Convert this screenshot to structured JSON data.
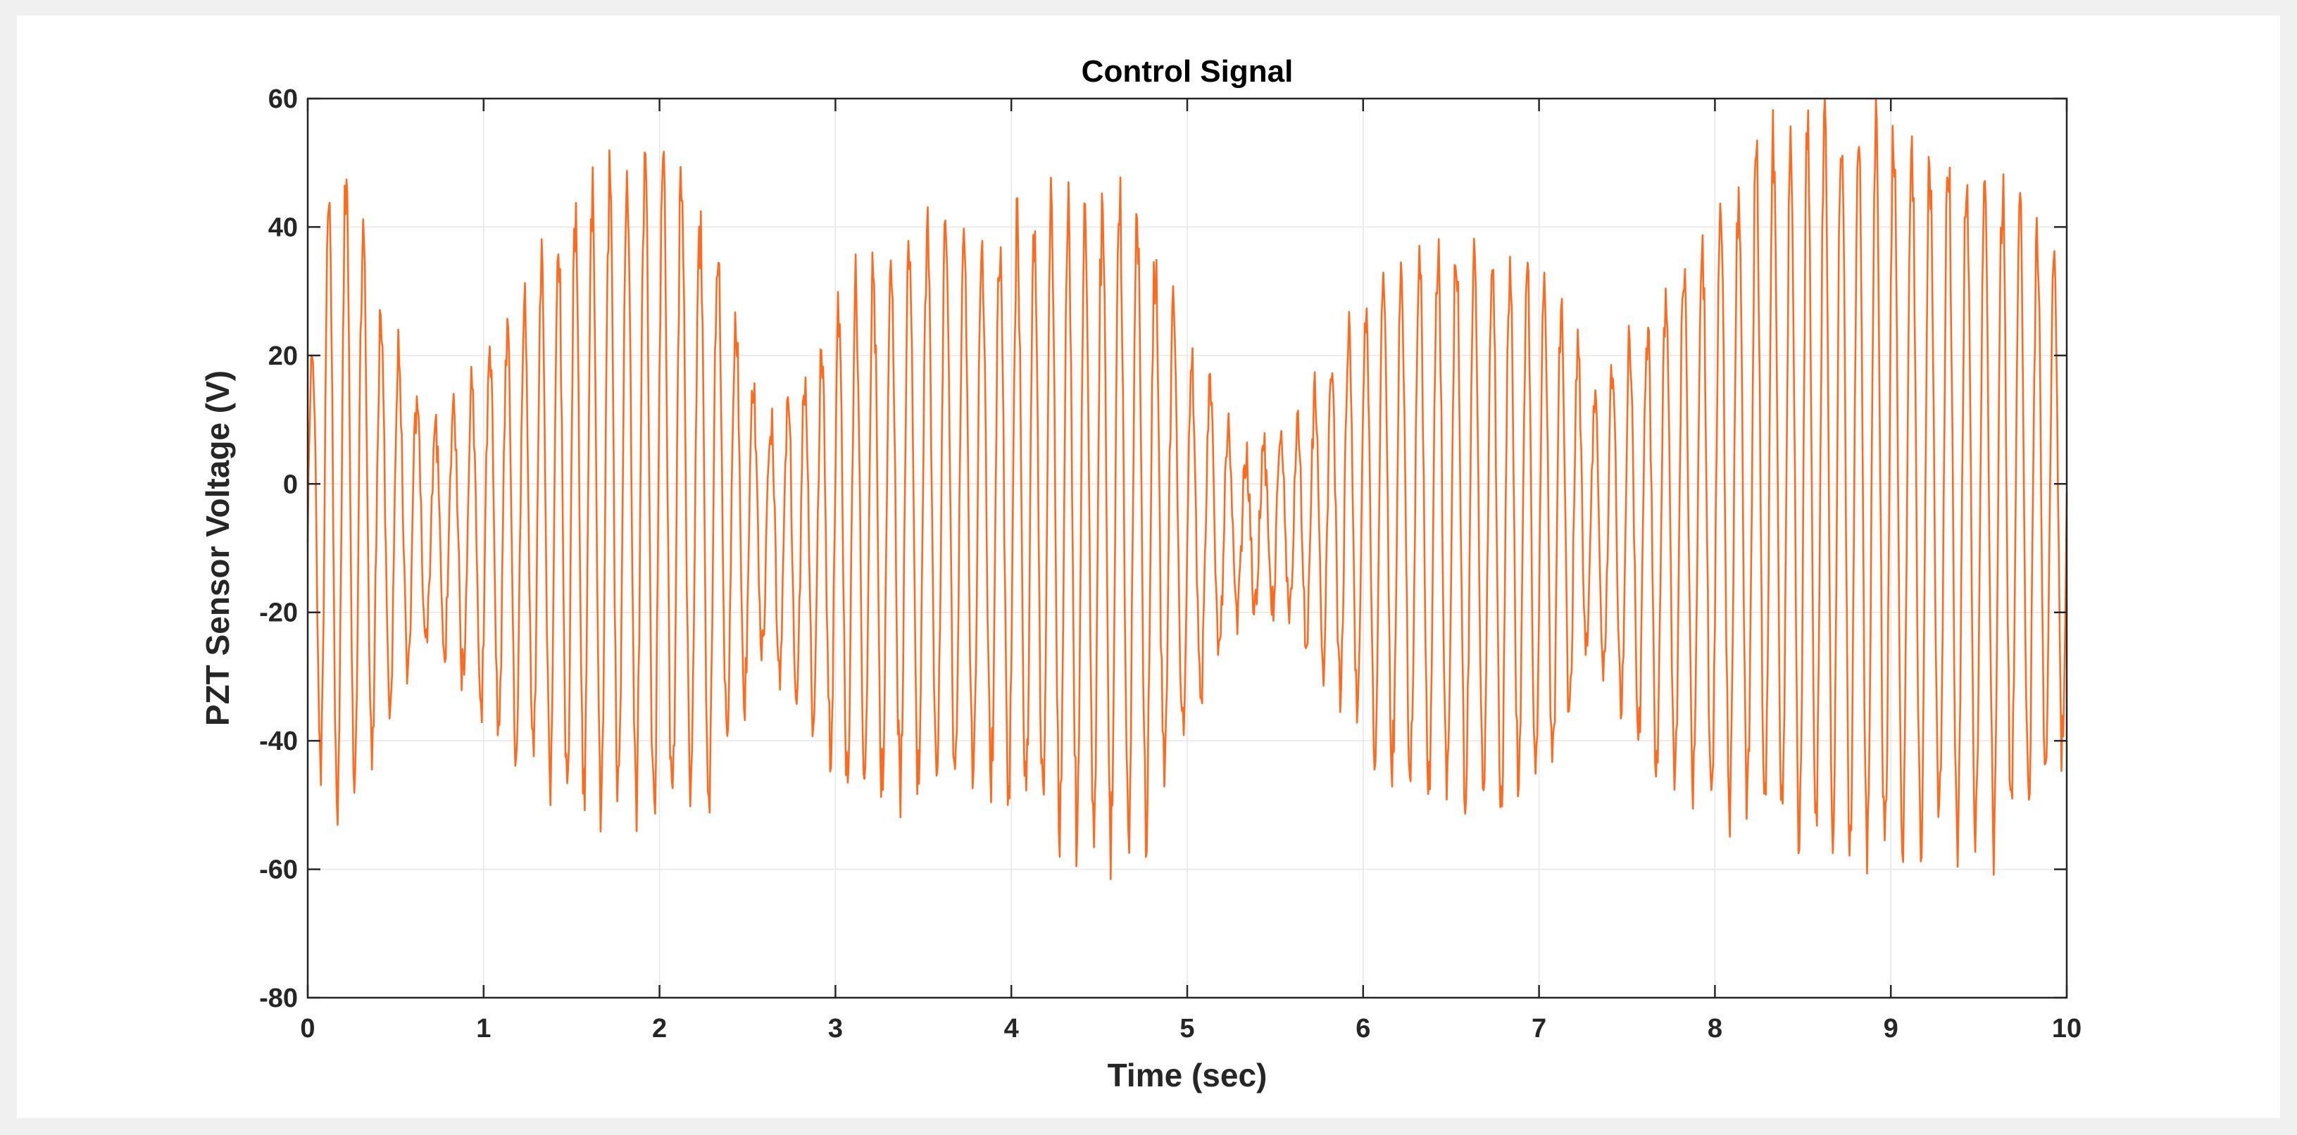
{
  "chart_data": {
    "type": "line",
    "title": "Control Signal",
    "xlabel": "Time (sec)",
    "ylabel": "PZT Sensor Voltage (V)",
    "xlim": [
      0,
      10
    ],
    "ylim": [
      -80,
      60
    ],
    "xticks": [
      "0",
      "1",
      "2",
      "3",
      "4",
      "5",
      "6",
      "7",
      "8",
      "9",
      "10"
    ],
    "yticks": [
      "-80",
      "-60",
      "-40",
      "-20",
      "0",
      "20",
      "40",
      "60"
    ],
    "grid": true,
    "line_color": "#ff6a21",
    "signal": {
      "oscillation_frequency_hz": 10,
      "sample_step_sec": 0.005,
      "envelope": [
        {
          "t": 0.0,
          "amp": 20,
          "offset": -8
        },
        {
          "t": 0.1,
          "amp": 48,
          "offset": -2
        },
        {
          "t": 0.25,
          "amp": 52,
          "offset": -2
        },
        {
          "t": 0.4,
          "amp": 34,
          "offset": -6
        },
        {
          "t": 0.7,
          "amp": 16,
          "offset": -8
        },
        {
          "t": 0.95,
          "amp": 26,
          "offset": -8
        },
        {
          "t": 1.3,
          "amp": 40,
          "offset": -6
        },
        {
          "t": 1.6,
          "amp": 48,
          "offset": -3
        },
        {
          "t": 2.0,
          "amp": 54,
          "offset": 0
        },
        {
          "t": 2.3,
          "amp": 44,
          "offset": -4
        },
        {
          "t": 2.6,
          "amp": 18,
          "offset": -8
        },
        {
          "t": 2.85,
          "amp": 28,
          "offset": -10
        },
        {
          "t": 3.1,
          "amp": 40,
          "offset": -8
        },
        {
          "t": 3.5,
          "amp": 44,
          "offset": -4
        },
        {
          "t": 3.9,
          "amp": 44,
          "offset": -4
        },
        {
          "t": 4.3,
          "amp": 50,
          "offset": -6
        },
        {
          "t": 4.7,
          "amp": 52,
          "offset": -6
        },
        {
          "t": 4.95,
          "amp": 34,
          "offset": -8
        },
        {
          "t": 5.3,
          "amp": 12,
          "offset": -8
        },
        {
          "t": 5.6,
          "amp": 14,
          "offset": -6
        },
        {
          "t": 5.9,
          "amp": 30,
          "offset": -6
        },
        {
          "t": 6.3,
          "amp": 42,
          "offset": -6
        },
        {
          "t": 6.8,
          "amp": 44,
          "offset": -8
        },
        {
          "t": 7.1,
          "amp": 38,
          "offset": -6
        },
        {
          "t": 7.3,
          "amp": 20,
          "offset": -6
        },
        {
          "t": 7.6,
          "amp": 34,
          "offset": -8
        },
        {
          "t": 7.9,
          "amp": 44,
          "offset": -6
        },
        {
          "t": 8.3,
          "amp": 54,
          "offset": 0
        },
        {
          "t": 8.7,
          "amp": 58,
          "offset": 0
        },
        {
          "t": 9.2,
          "amp": 56,
          "offset": -2
        },
        {
          "t": 9.6,
          "amp": 52,
          "offset": -4
        },
        {
          "t": 10.0,
          "amp": 38,
          "offset": -4
        }
      ]
    }
  }
}
